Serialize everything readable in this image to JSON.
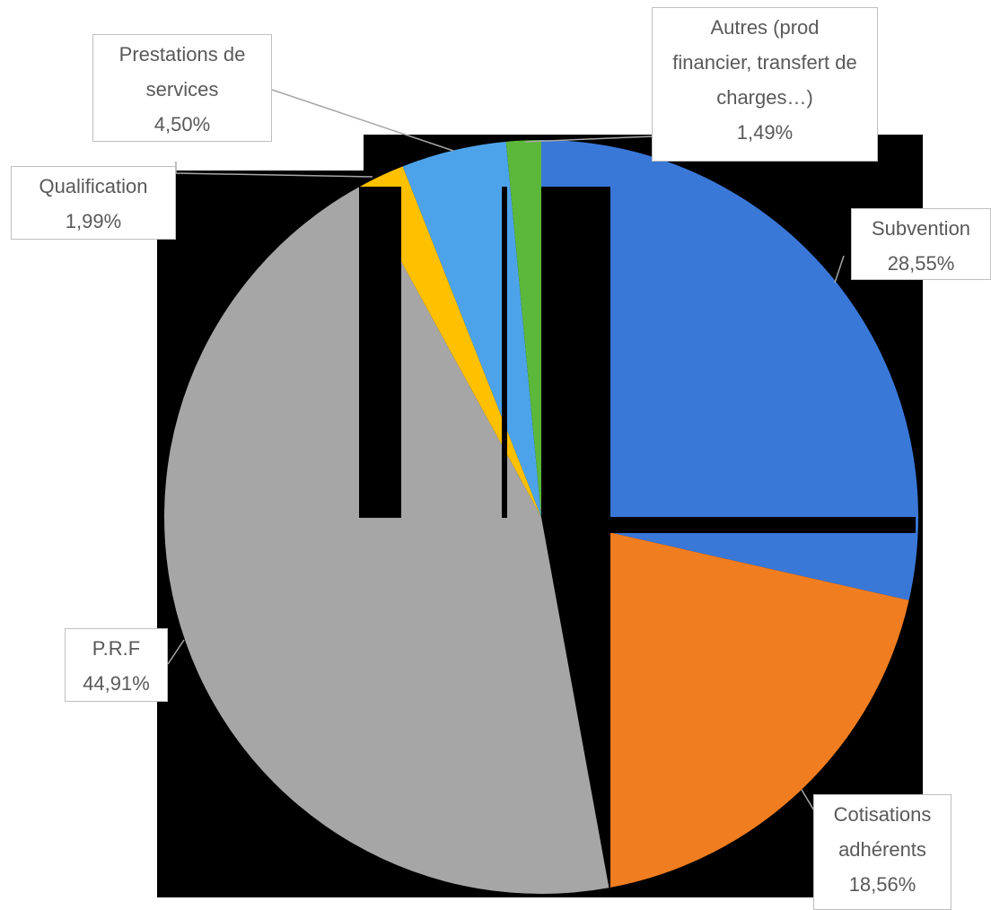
{
  "chart_data": {
    "type": "pie",
    "categories": [
      "Subvention",
      "Cotisations adhérents",
      "P.R.F",
      "Qualification",
      "Prestations de services",
      "Autres (prod financier, transfert de charges…)"
    ],
    "values": [
      28.55,
      18.56,
      44.91,
      1.99,
      4.5,
      1.49
    ],
    "value_labels": [
      "28,55%",
      "18,56%",
      "44,91%",
      "1,99%",
      "4,50%",
      "1,49%"
    ],
    "colors": [
      "#3a78d8",
      "#f07d20",
      "#a6a6a6",
      "#ffc000",
      "#4da3ea",
      "#5cb83a"
    ]
  }
}
